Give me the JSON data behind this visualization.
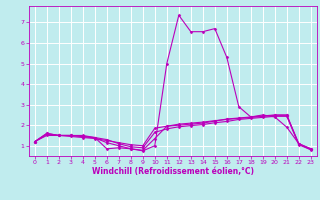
{
  "xlabel": "Windchill (Refroidissement éolien,°C)",
  "bg_color": "#c0ecee",
  "line_color": "#bb00bb",
  "grid_color": "#ffffff",
  "xlim": [
    -0.5,
    23.5
  ],
  "ylim": [
    0.5,
    7.8
  ],
  "xticks": [
    0,
    1,
    2,
    3,
    4,
    5,
    6,
    7,
    8,
    9,
    10,
    11,
    12,
    13,
    14,
    15,
    16,
    17,
    18,
    19,
    20,
    21,
    22,
    23
  ],
  "yticks": [
    1,
    2,
    3,
    4,
    5,
    6,
    7
  ],
  "series": [
    {
      "x": [
        0,
        1,
        2,
        3,
        4,
        5,
        6,
        7,
        8,
        9,
        10,
        11,
        12,
        13,
        14,
        15,
        16,
        17,
        18,
        19,
        20,
        21,
        22,
        23
      ],
      "y": [
        1.2,
        1.6,
        1.5,
        1.5,
        1.5,
        1.4,
        0.85,
        0.9,
        0.85,
        0.75,
        1.0,
        5.0,
        7.35,
        6.55,
        6.55,
        6.7,
        5.3,
        2.9,
        2.4,
        2.5,
        2.4,
        1.9,
        1.1,
        0.85
      ]
    },
    {
      "x": [
        0,
        1,
        2,
        3,
        4,
        5,
        6,
        7,
        8,
        9,
        10,
        11,
        12,
        13,
        14,
        15,
        16,
        17,
        18,
        19,
        20,
        21,
        22,
        23
      ],
      "y": [
        1.2,
        1.5,
        1.5,
        1.45,
        1.4,
        1.35,
        1.25,
        1.15,
        1.05,
        1.0,
        1.85,
        1.95,
        2.0,
        2.05,
        2.1,
        2.2,
        2.3,
        2.35,
        2.4,
        2.45,
        2.5,
        2.5,
        1.1,
        0.85
      ]
    },
    {
      "x": [
        0,
        1,
        2,
        3,
        4,
        5,
        6,
        7,
        8,
        9,
        10,
        11,
        12,
        13,
        14,
        15,
        16,
        17,
        18,
        19,
        20,
        21,
        22,
        23
      ],
      "y": [
        1.2,
        1.55,
        1.5,
        1.5,
        1.45,
        1.4,
        1.3,
        1.1,
        0.95,
        0.9,
        1.65,
        1.82,
        1.92,
        1.98,
        2.03,
        2.12,
        2.18,
        2.28,
        2.33,
        2.38,
        2.43,
        2.43,
        1.05,
        0.8
      ]
    },
    {
      "x": [
        0,
        1,
        2,
        3,
        4,
        5,
        6,
        7,
        8,
        9,
        10,
        11,
        12,
        13,
        14,
        15,
        16,
        17,
        18,
        19,
        20,
        21,
        22,
        23
      ],
      "y": [
        1.2,
        1.6,
        1.5,
        1.5,
        1.45,
        1.38,
        1.15,
        1.0,
        0.85,
        0.78,
        1.35,
        1.95,
        2.05,
        2.1,
        2.15,
        2.22,
        2.28,
        2.33,
        2.38,
        2.43,
        2.48,
        2.48,
        1.07,
        0.82
      ]
    }
  ]
}
